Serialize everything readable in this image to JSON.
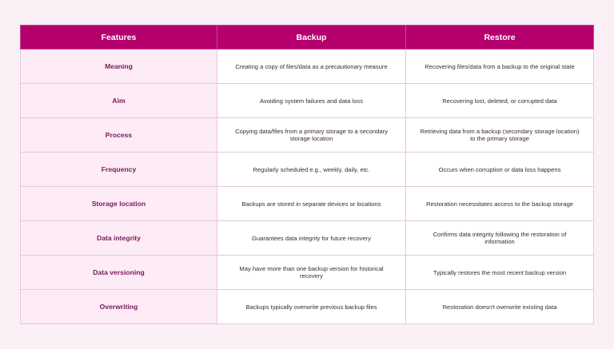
{
  "table": {
    "headers": [
      "Features",
      "Backup",
      "Restore"
    ],
    "rows": [
      {
        "feature": "Meaning",
        "backup": "Creating a copy of files/data as a precautionary measure",
        "restore": "Recovering files/data from a backup to the original state"
      },
      {
        "feature": "Aim",
        "backup": "Avoiding system failures and data loss",
        "restore": "Recovering lost, deleted, or corrupted data"
      },
      {
        "feature": "Process",
        "backup": "Copying data/files from a primary storage to a secondary storage location",
        "restore": "Retrieving data from a backup (secondary storage location) to the primary storage"
      },
      {
        "feature": "Frequency",
        "backup": "Regularly scheduled e.g., weekly, daily, etc.",
        "restore": "Occurs when corruption or data loss happens"
      },
      {
        "feature": "Storage location",
        "backup": "Backups are stored in separate devices or locations",
        "restore": "Restoration necessitates access to the backup storage"
      },
      {
        "feature": "Data integrity",
        "backup": "Guarantees data integrity for future recovery",
        "restore": "Confirms data integrity following the restoration of information"
      },
      {
        "feature": "Data versioning",
        "backup": "May have more than one backup version for historical recovery",
        "restore": "Typically restores the most recent backup version"
      },
      {
        "feature": "Overwriting",
        "backup": "Backups typically overwrite previous backup files",
        "restore": "Restoration doesn't overwrite existing data"
      }
    ]
  },
  "colors": {
    "header_bg": "#b5006e",
    "feature_col_bg": "#fdebf6",
    "page_bg": "#fcf0f7"
  }
}
